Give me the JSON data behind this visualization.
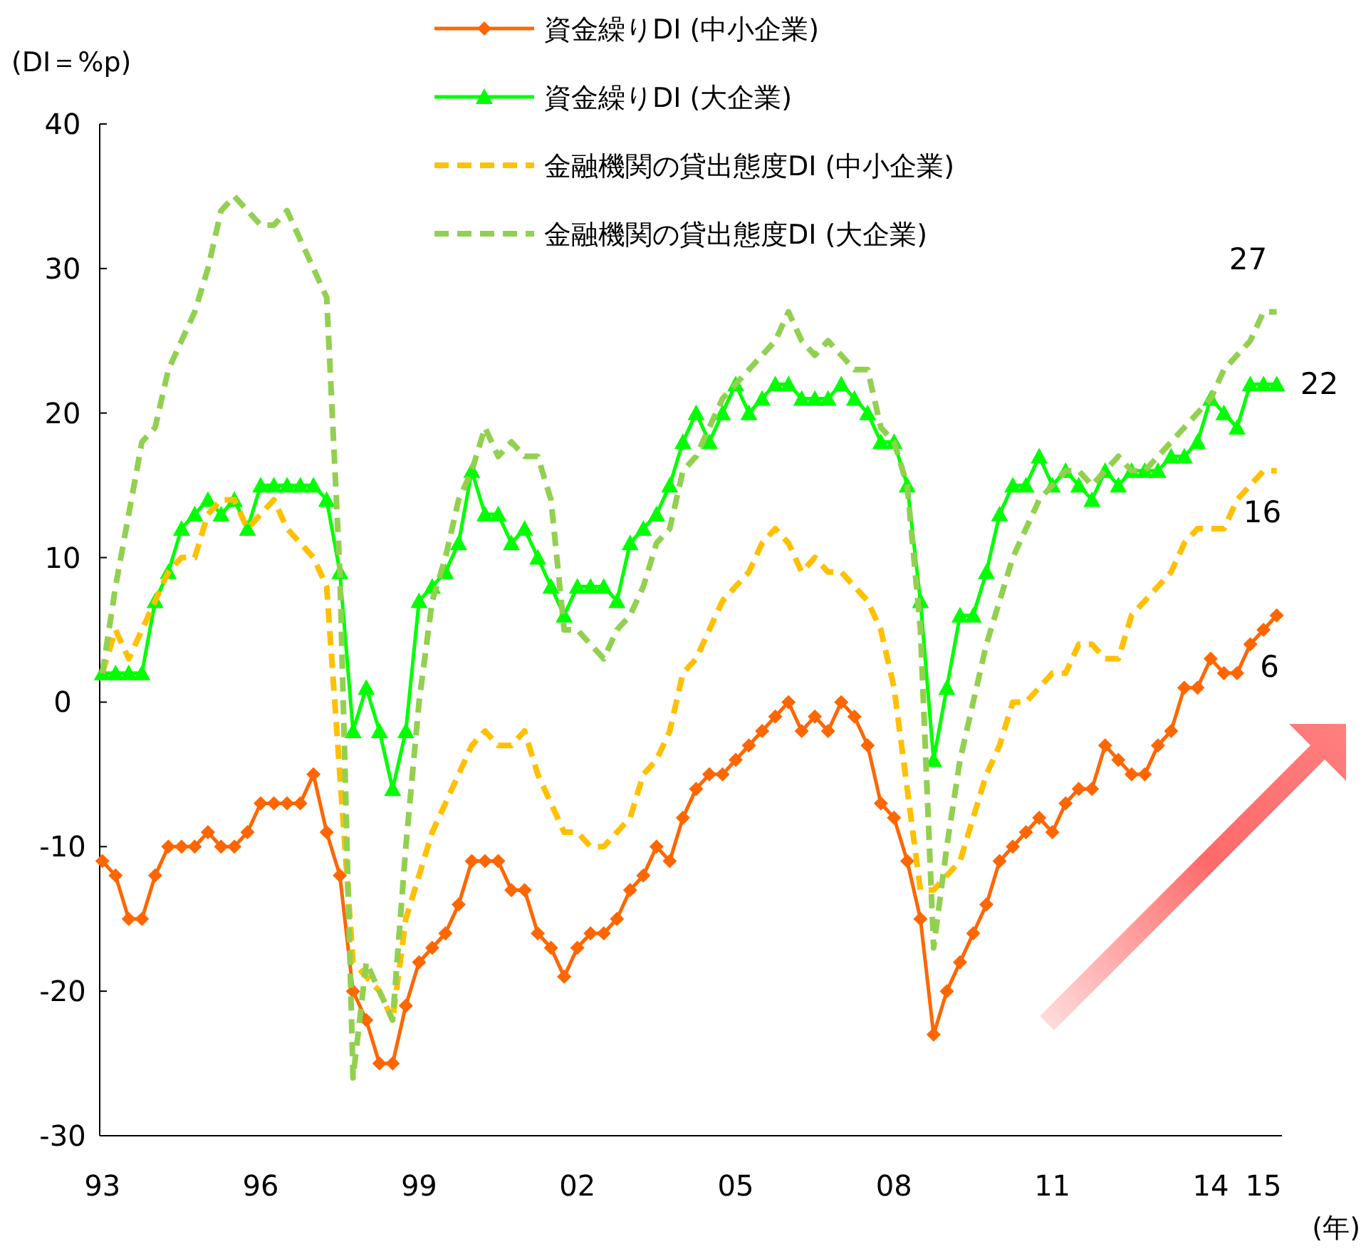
{
  "chart_data": {
    "type": "line",
    "ylabel": "(DI＝%p)",
    "xlabel": "(年)",
    "x": [
      1993,
      1993.25,
      1993.5,
      1993.75,
      1994,
      1994.25,
      1994.5,
      1994.75,
      1995,
      1995.25,
      1995.5,
      1995.75,
      1996,
      1996.25,
      1996.5,
      1996.75,
      1997,
      1997.25,
      1997.5,
      1997.75,
      1998,
      1998.25,
      1998.5,
      1998.75,
      1999,
      1999.25,
      1999.5,
      1999.75,
      2000,
      2000.25,
      2000.5,
      2000.75,
      2001,
      2001.25,
      2001.5,
      2001.75,
      2002,
      2002.25,
      2002.5,
      2002.75,
      2003,
      2003.25,
      2003.5,
      2003.75,
      2004,
      2004.25,
      2004.5,
      2004.75,
      2005,
      2005.25,
      2005.5,
      2005.75,
      2006,
      2006.25,
      2006.5,
      2006.75,
      2007,
      2007.25,
      2007.5,
      2007.75,
      2008,
      2008.25,
      2008.5,
      2008.75,
      2009,
      2009.25,
      2009.5,
      2009.75,
      2010,
      2010.25,
      2010.5,
      2010.75,
      2011,
      2011.25,
      2011.5,
      2011.75,
      2012,
      2012.25,
      2012.5,
      2012.75,
      2013,
      2013.25,
      2013.5,
      2013.75,
      2014,
      2014.25,
      2014.5,
      2014.75,
      2015,
      2015.25
    ],
    "series": [
      {
        "name": "資金繰りDI (中小企業)",
        "color": "#ff6600",
        "marker": "diamond",
        "line_style": "solid",
        "values": [
          -11,
          -12,
          -15,
          -15,
          -12,
          -10,
          -10,
          -10,
          -9,
          -10,
          -10,
          -9,
          -7,
          -7,
          -7,
          -7,
          -5,
          -9,
          -12,
          -20,
          -22,
          -25,
          -25,
          -21,
          -18,
          -17,
          -16,
          -14,
          -11,
          -11,
          -11,
          -13,
          -13,
          -16,
          -17,
          -19,
          -17,
          -16,
          -16,
          -15,
          -13,
          -12,
          -10,
          -11,
          -8,
          -6,
          -5,
          -5,
          -4,
          -3,
          -2,
          -1,
          0,
          -2,
          -1,
          -2,
          0,
          -1,
          -3,
          -7,
          -8,
          -11,
          -15,
          -23,
          -20,
          -18,
          -16,
          -14,
          -11,
          -10,
          -9,
          -8,
          -9,
          -7,
          -6,
          -6,
          -3,
          -4,
          -5,
          -5,
          -3,
          -2,
          1,
          1,
          3,
          2,
          2,
          4,
          5,
          6
        ],
        "value_labels": [
          null,
          null,
          null,
          null,
          null,
          null,
          null,
          null,
          null,
          null,
          null,
          null,
          null,
          null,
          null,
          null,
          null,
          null,
          null,
          null,
          null,
          null,
          null,
          null,
          null,
          null,
          null,
          null,
          null,
          null,
          null,
          null,
          null,
          null,
          null,
          null,
          null,
          null,
          null,
          null,
          null,
          null,
          null,
          null,
          null,
          null,
          null,
          null,
          null,
          null,
          null,
          null,
          null,
          null,
          null,
          null,
          null,
          null,
          null,
          null,
          null,
          null,
          null,
          null,
          null,
          null,
          null,
          null,
          null,
          null,
          null,
          null,
          null,
          null,
          null,
          null,
          null,
          null,
          null,
          null,
          null,
          null,
          null,
          null,
          null,
          null,
          null,
          null,
          null,
          "6"
        ]
      },
      {
        "name": "資金繰りDI (大企業)",
        "color": "#00ff00",
        "marker": "triangle",
        "line_style": "solid",
        "values": [
          2,
          2,
          2,
          2,
          7,
          9,
          12,
          13,
          14,
          13,
          14,
          12,
          15,
          15,
          15,
          15,
          15,
          14,
          9,
          -2,
          1,
          -2,
          -6,
          -2,
          7,
          8,
          9,
          11,
          16,
          13,
          13,
          11,
          12,
          10,
          8,
          6,
          8,
          8,
          8,
          7,
          11,
          12,
          13,
          15,
          18,
          20,
          18,
          20,
          22,
          20,
          21,
          22,
          22,
          21,
          21,
          21,
          22,
          21,
          20,
          18,
          18,
          15,
          7,
          -4,
          1,
          6,
          6,
          9,
          13,
          15,
          15,
          17,
          15,
          16,
          15,
          14,
          16,
          15,
          16,
          16,
          16,
          17,
          17,
          18,
          21,
          20,
          19,
          22,
          22,
          22
        ],
        "value_labels": [
          null,
          null,
          null,
          null,
          null,
          null,
          null,
          null,
          null,
          null,
          null,
          null,
          null,
          null,
          null,
          null,
          null,
          null,
          null,
          null,
          null,
          null,
          null,
          null,
          null,
          null,
          null,
          null,
          null,
          null,
          null,
          null,
          null,
          null,
          null,
          null,
          null,
          null,
          null,
          null,
          null,
          null,
          null,
          null,
          null,
          null,
          null,
          null,
          null,
          null,
          null,
          null,
          null,
          null,
          null,
          null,
          null,
          null,
          null,
          null,
          null,
          null,
          null,
          null,
          null,
          null,
          null,
          null,
          null,
          null,
          null,
          null,
          null,
          null,
          null,
          null,
          null,
          null,
          null,
          null,
          null,
          null,
          null,
          null,
          null,
          null,
          null,
          null,
          null,
          "22"
        ]
      },
      {
        "name": "金融機関の貸出態度DI (中小企業)",
        "color": "#ffc000",
        "marker": "none",
        "line_style": "dashed",
        "values": [
          2,
          5,
          3,
          5,
          7,
          9,
          10,
          10,
          13,
          14,
          14,
          12,
          13,
          14,
          12,
          11,
          10,
          8,
          -5,
          -18,
          -19,
          -20,
          -22,
          -15,
          -12,
          -9,
          -7,
          -5,
          -3,
          -2,
          -3,
          -3,
          -2,
          -5,
          -7,
          -9,
          -9,
          -10,
          -10,
          -9,
          -8,
          -5,
          -4,
          -2,
          2,
          3,
          5,
          7,
          8,
          9,
          11,
          12,
          11,
          9,
          10,
          9,
          9,
          8,
          7,
          5,
          1,
          -6,
          -13,
          -13,
          -12,
          -11,
          -8,
          -5,
          -3,
          0,
          0,
          1,
          2,
          2,
          4,
          4,
          3,
          3,
          6,
          7,
          8,
          9,
          11,
          12,
          12,
          12,
          14,
          15,
          16,
          16
        ],
        "value_labels": [
          null,
          null,
          null,
          null,
          null,
          null,
          null,
          null,
          null,
          null,
          null,
          null,
          null,
          null,
          null,
          null,
          null,
          null,
          null,
          null,
          null,
          null,
          null,
          null,
          null,
          null,
          null,
          null,
          null,
          null,
          null,
          null,
          null,
          null,
          null,
          null,
          null,
          null,
          null,
          null,
          null,
          null,
          null,
          null,
          null,
          null,
          null,
          null,
          null,
          null,
          null,
          null,
          null,
          null,
          null,
          null,
          null,
          null,
          null,
          null,
          null,
          null,
          null,
          null,
          null,
          null,
          null,
          null,
          null,
          null,
          null,
          null,
          null,
          null,
          null,
          null,
          null,
          null,
          null,
          null,
          null,
          null,
          null,
          null,
          null,
          null,
          null,
          null,
          null,
          "16"
        ]
      },
      {
        "name": "金融機関の貸出態度DI (大企業)",
        "color": "#92d050",
        "marker": "none",
        "line_style": "dashed",
        "values": [
          2,
          8,
          13,
          18,
          19,
          23,
          25,
          27,
          30,
          34,
          35,
          34,
          33,
          33,
          34,
          32,
          30,
          28,
          9,
          -26,
          -18,
          -20,
          -22,
          -10,
          0,
          7,
          10,
          14,
          16,
          19,
          17,
          18,
          17,
          17,
          14,
          5,
          5,
          4,
          3,
          5,
          6,
          8,
          11,
          12,
          16,
          17,
          19,
          21,
          22,
          23,
          24,
          25,
          27,
          25,
          24,
          25,
          24,
          23,
          23,
          19,
          18,
          15,
          5,
          -17,
          -10,
          -4,
          0,
          4,
          7,
          10,
          12,
          14,
          15,
          16,
          16,
          15,
          16,
          17,
          16,
          16,
          17,
          18,
          19,
          20,
          21,
          23,
          24,
          25,
          27,
          27
        ],
        "value_labels": [
          null,
          null,
          null,
          null,
          null,
          null,
          null,
          null,
          null,
          null,
          null,
          null,
          null,
          null,
          null,
          null,
          null,
          null,
          null,
          null,
          null,
          null,
          null,
          null,
          null,
          null,
          null,
          null,
          null,
          null,
          null,
          null,
          null,
          null,
          null,
          null,
          null,
          null,
          null,
          null,
          null,
          null,
          null,
          null,
          null,
          null,
          null,
          null,
          null,
          null,
          null,
          null,
          null,
          null,
          null,
          null,
          null,
          null,
          null,
          null,
          null,
          null,
          null,
          null,
          null,
          null,
          null,
          null,
          null,
          null,
          null,
          null,
          null,
          null,
          null,
          null,
          null,
          null,
          null,
          null,
          null,
          null,
          null,
          null,
          null,
          null,
          null,
          null,
          null,
          "27"
        ]
      }
    ],
    "xlim": [
      1992.95,
      2015.35
    ],
    "xticks": [
      {
        "value": 1993,
        "label": "93"
      },
      {
        "value": 1996,
        "label": "96"
      },
      {
        "value": 1999,
        "label": "99"
      },
      {
        "value": 2002,
        "label": "02"
      },
      {
        "value": 2005,
        "label": "05"
      },
      {
        "value": 2008,
        "label": "08"
      },
      {
        "value": 2011,
        "label": "11"
      },
      {
        "value": 2014,
        "label": "14"
      },
      {
        "value": 2015,
        "label": "15"
      }
    ],
    "ylim": [
      -30,
      40
    ],
    "yticks": [
      -30,
      -20,
      -10,
      0,
      10,
      20,
      30,
      40
    ],
    "legend": "top"
  }
}
